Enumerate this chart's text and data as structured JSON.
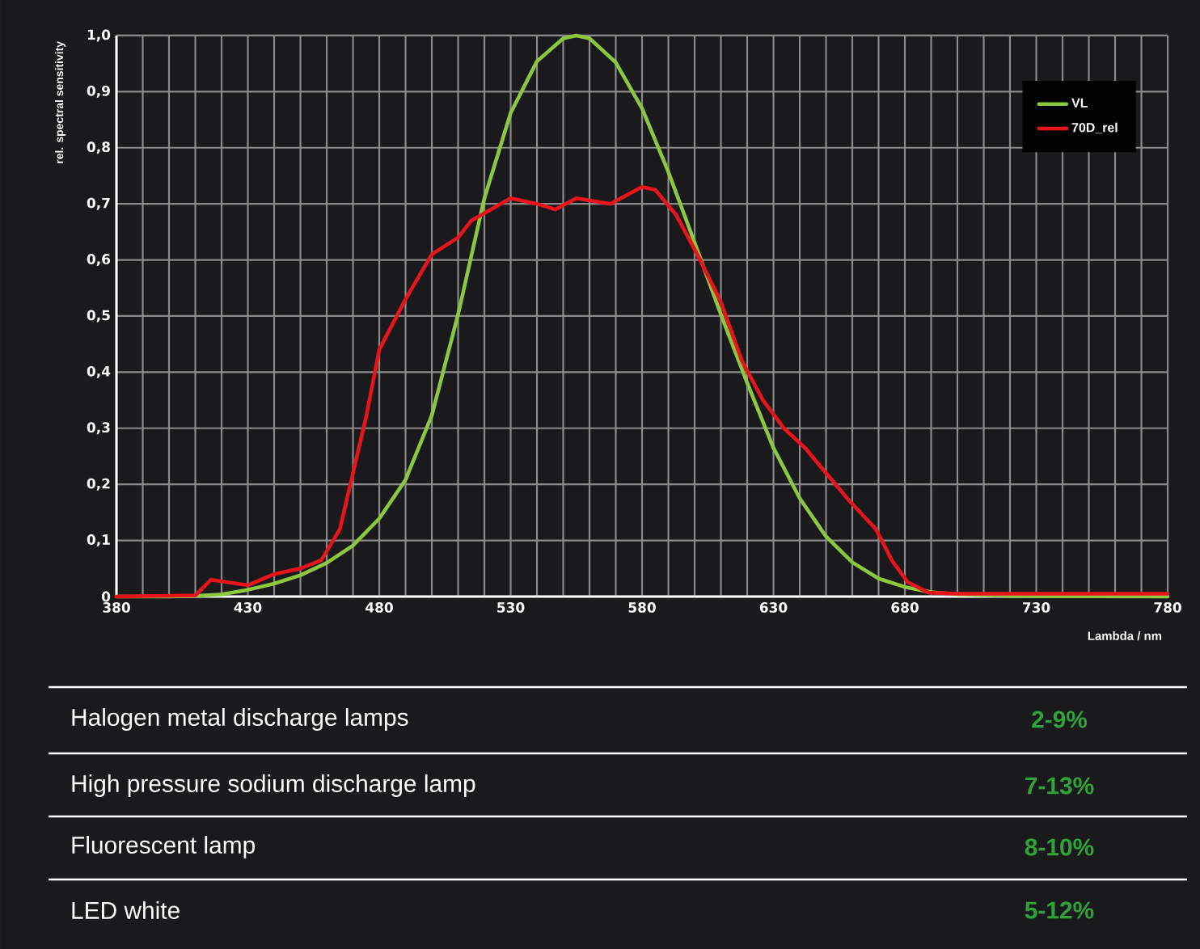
{
  "chart_data": {
    "type": "line",
    "xlabel": "Lambda / nm",
    "ylabel": "rel. spectral sensitivity",
    "xlim": [
      380,
      780
    ],
    "ylim": [
      0,
      1
    ],
    "xticks": [
      380,
      {
        "value": 390,
        "label": null
      },
      {
        "value": 400,
        "label": null
      },
      {
        "value": 410,
        "label": null
      },
      {
        "value": 420,
        "label": null
      },
      430,
      {
        "value": 440,
        "label": null
      },
      {
        "value": 450,
        "label": null
      },
      {
        "value": 460,
        "label": null
      },
      {
        "value": 470,
        "label": null
      },
      480,
      {
        "value": 490,
        "label": null
      },
      {
        "value": 500,
        "label": null
      },
      {
        "value": 510,
        "label": null
      },
      {
        "value": 520,
        "label": null
      },
      530,
      {
        "value": 540,
        "label": null
      },
      {
        "value": 550,
        "label": null
      },
      {
        "value": 560,
        "label": null
      },
      {
        "value": 570,
        "label": null
      },
      580,
      {
        "value": 590,
        "label": null
      },
      {
        "value": 600,
        "label": null
      },
      {
        "value": 610,
        "label": null
      },
      {
        "value": 620,
        "label": null
      },
      630,
      {
        "value": 640,
        "label": null
      },
      {
        "value": 650,
        "label": null
      },
      {
        "value": 660,
        "label": null
      },
      {
        "value": 670,
        "label": null
      },
      680,
      {
        "value": 690,
        "label": null
      },
      {
        "value": 700,
        "label": null
      },
      {
        "value": 710,
        "label": null
      },
      {
        "value": 720,
        "label": null
      },
      730,
      {
        "value": 740,
        "label": null
      },
      {
        "value": 750,
        "label": null
      },
      {
        "value": 760,
        "label": null
      },
      {
        "value": 770,
        "label": null
      },
      780
    ],
    "yticks": [
      0,
      {
        "value": 0.1,
        "label": "0,1"
      },
      {
        "value": 0.2,
        "label": "0,2"
      },
      {
        "value": 0.3,
        "label": "0,3"
      },
      {
        "value": 0.4,
        "label": "0,4"
      },
      {
        "value": 0.5,
        "label": "0,5"
      },
      {
        "value": 0.6,
        "label": "0,6"
      },
      {
        "value": 0.7,
        "label": "0,7"
      },
      {
        "value": 0.8,
        "label": "0,8"
      },
      {
        "value": 0.9,
        "label": "0,9"
      },
      {
        "value": 1.0,
        "label": "1,0"
      }
    ],
    "grid": true,
    "legend": "top right",
    "marker": "none",
    "line_style": "solid",
    "series": [
      {
        "name": "VL",
        "color": "#8dc63f",
        "x": [
          380,
          400,
          410,
          420,
          430,
          440,
          450,
          460,
          470,
          480,
          490,
          500,
          510,
          520,
          530,
          540,
          550,
          555,
          560,
          570,
          580,
          590,
          600,
          610,
          620,
          630,
          640,
          650,
          660,
          670,
          680,
          690,
          700,
          720,
          780
        ],
        "values": [
          0,
          0,
          0.001,
          0.004,
          0.012,
          0.023,
          0.038,
          0.06,
          0.091,
          0.139,
          0.208,
          0.323,
          0.503,
          0.71,
          0.862,
          0.954,
          0.995,
          1.0,
          0.995,
          0.952,
          0.87,
          0.757,
          0.631,
          0.503,
          0.381,
          0.265,
          0.175,
          0.107,
          0.061,
          0.032,
          0.017,
          0.008,
          0.004,
          0.001,
          0
        ]
      },
      {
        "name": "70D_rel",
        "color": "#e8141c",
        "x": [
          380,
          410,
          416,
          430,
          440,
          450,
          458,
          465,
          470,
          475,
          480,
          490,
          500,
          510,
          515,
          530,
          540,
          547,
          555,
          568,
          580,
          585,
          593,
          601,
          610,
          618,
          626,
          634,
          642,
          650,
          659,
          669,
          675,
          681,
          689,
          700,
          780
        ],
        "values": [
          0,
          0.002,
          0.03,
          0.02,
          0.04,
          0.05,
          0.065,
          0.12,
          0.22,
          0.32,
          0.44,
          0.53,
          0.61,
          0.64,
          0.67,
          0.71,
          0.7,
          0.69,
          0.71,
          0.7,
          0.73,
          0.725,
          0.68,
          0.61,
          0.525,
          0.42,
          0.35,
          0.3,
          0.265,
          0.22,
          0.17,
          0.12,
          0.065,
          0.026,
          0.007,
          0.005,
          0.005
        ]
      }
    ],
    "annotations": [
      "Halogen metal discharge lamps",
      "2-9%",
      "High pressure sodium discharge lamp",
      "7-13%",
      "Fluorescent lamp",
      "8-10%",
      "LED white",
      "5-12%"
    ]
  }
}
